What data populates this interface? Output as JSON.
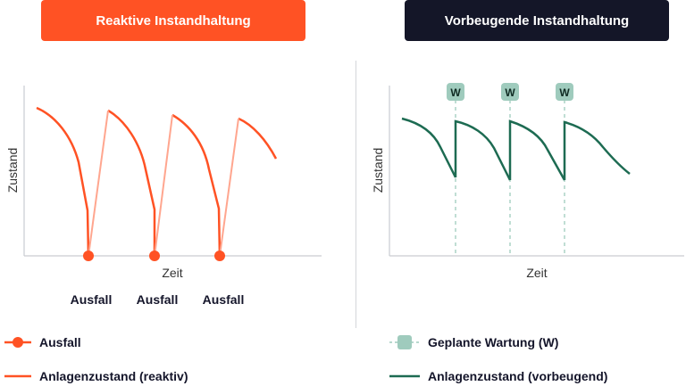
{
  "colors": {
    "reactive": "#ff5224",
    "reactive_light": "#ffa68f",
    "preventive": "#1d6b52",
    "maintenance_marker": "#9fcbbd",
    "navy": "#141628",
    "axis": "#c9ccd1"
  },
  "left_panel": {
    "title": "Reaktive Instandhaltung",
    "y_axis_label": "Zustand",
    "x_axis_label": "Zeit",
    "failure_labels": [
      "Ausfall",
      "Ausfall",
      "Ausfall"
    ]
  },
  "right_panel": {
    "title": "Vorbeugende Instandhaltung",
    "y_axis_label": "Zustand",
    "x_axis_label": "Zeit",
    "maintenance_markers": [
      "W",
      "W",
      "W"
    ]
  },
  "legend": {
    "failure": "Ausfall",
    "reactive_condition": "Anlagenzustand (reaktiv)",
    "planned_maintenance": "Geplante Wartung (W)",
    "preventive_condition": "Anlagenzustand (vorbeugend)"
  }
}
